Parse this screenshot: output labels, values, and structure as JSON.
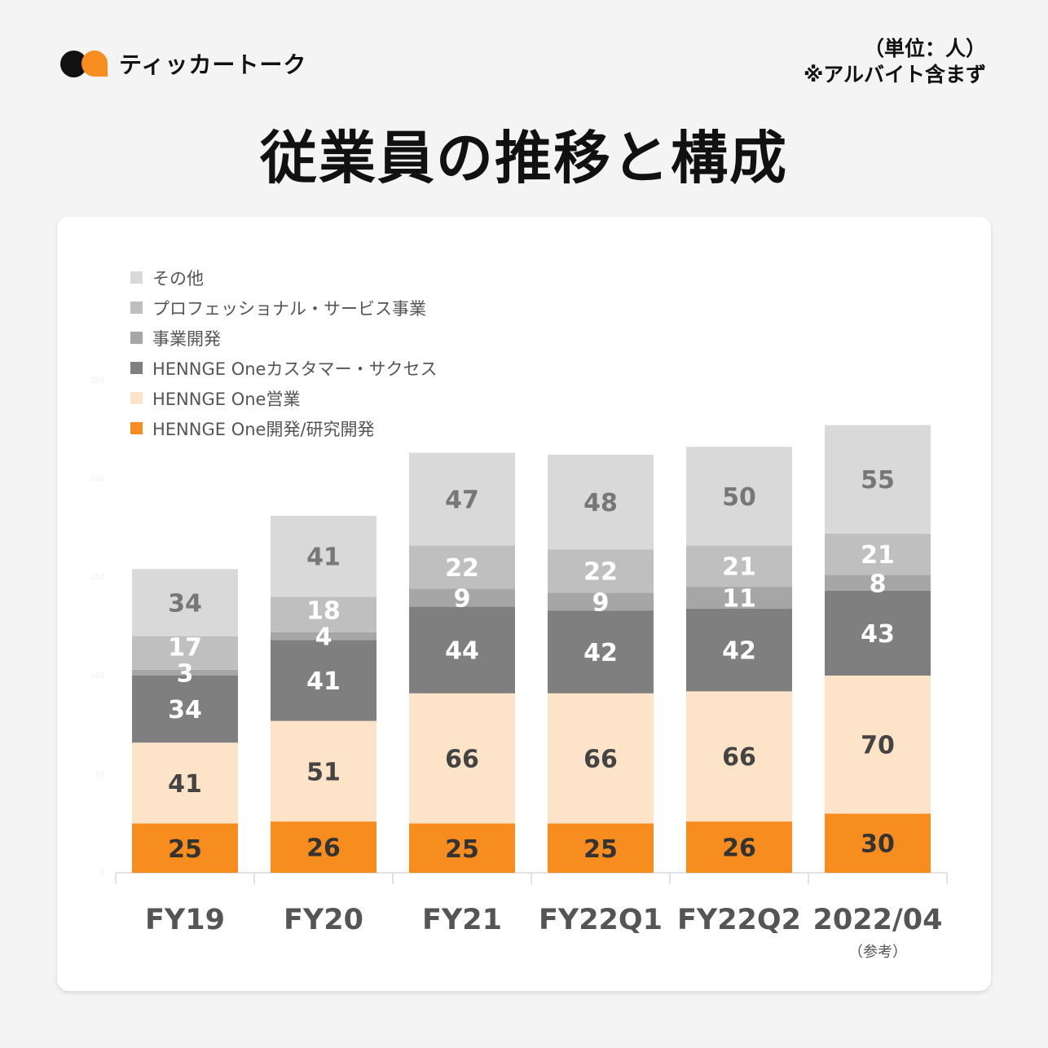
{
  "brand": {
    "name": "ティッカートーク"
  },
  "unit_note": {
    "line1": "（単位：人）",
    "line2": "※アルバイト含まず"
  },
  "title": "従業員の推移と構成",
  "chart_data": {
    "type": "bar",
    "stacked": true,
    "title": "従業員の推移と構成",
    "categories": [
      "FY19",
      "FY20",
      "FY21",
      "FY22Q1",
      "FY22Q2",
      "2022/04"
    ],
    "category_notes": [
      "",
      "",
      "",
      "",
      "",
      "（参考）"
    ],
    "ylim": [
      0,
      250
    ],
    "yticks": [
      0,
      50,
      100,
      150,
      200,
      250
    ],
    "legend_position": "top-left",
    "series": [
      {
        "name": "HENNGE One開発/研究開発",
        "color": "#f78d1e",
        "label_color": "#333333",
        "values": [
          25,
          26,
          25,
          25,
          26,
          30
        ]
      },
      {
        "name": "HENNGE One営業",
        "color": "#fde4c8",
        "label_color": "#444444",
        "values": [
          41,
          51,
          66,
          66,
          66,
          70
        ]
      },
      {
        "name": "HENNGE Oneカスタマー・サクセス",
        "color": "#7f7f7f",
        "label_color": "#ffffff",
        "values": [
          34,
          41,
          44,
          42,
          42,
          43
        ]
      },
      {
        "name": "事業開発",
        "color": "#a6a6a6",
        "label_color": "#ffffff",
        "values": [
          3,
          4,
          9,
          9,
          11,
          8
        ]
      },
      {
        "name": "プロフェッショナル・サービス事業",
        "color": "#bfbfbf",
        "label_color": "#ffffff",
        "values": [
          17,
          18,
          22,
          22,
          21,
          21
        ]
      },
      {
        "name": "その他",
        "color": "#d9d9d9",
        "label_color": "#777777",
        "values": [
          34,
          41,
          47,
          48,
          50,
          55
        ]
      }
    ]
  }
}
